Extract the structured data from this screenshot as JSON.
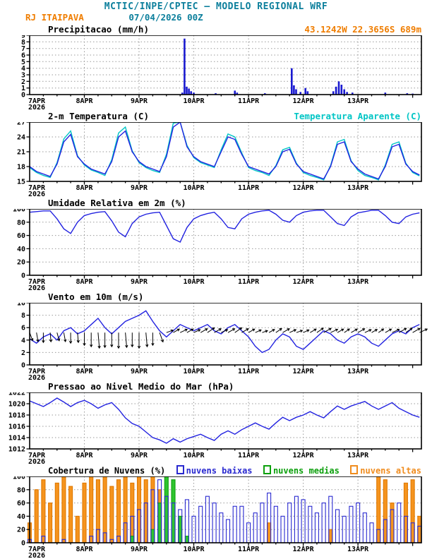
{
  "header": {
    "line1": "MCTIC/INPE/CPTEC — MODELO REGIONAL WRF",
    "station": "RJ ITAIPAVA",
    "run": "07/04/2026 00Z",
    "coords": "43.1242W 22.3656S 689m"
  },
  "colors": {
    "header_teal": "#0c7f9c",
    "orange": "#ef7d00",
    "line_blue": "#2222e0",
    "cyan": "#00c5c5",
    "precip_blue": "#1a1ad0",
    "cloud_low_blue": "#2a2ad0",
    "cloud_mid_green": "#0da00d",
    "cloud_high_orange": "#f08c1e"
  },
  "x_axis": {
    "tmax": 7.16,
    "ticks": [
      {
        "t": 0,
        "label": "7APR",
        "sub": "2026"
      },
      {
        "t": 1,
        "label": "8APR"
      },
      {
        "t": 2,
        "label": "9APR"
      },
      {
        "t": 3,
        "label": "10APR"
      },
      {
        "t": 4,
        "label": "11APR"
      },
      {
        "t": 5,
        "label": "12APR"
      },
      {
        "t": 6,
        "label": "13APR"
      }
    ]
  },
  "time_days": [
    0,
    0.125,
    0.25,
    0.375,
    0.5,
    0.625,
    0.75,
    0.875,
    1,
    1.125,
    1.25,
    1.375,
    1.5,
    1.625,
    1.75,
    1.875,
    2,
    2.125,
    2.25,
    2.375,
    2.5,
    2.625,
    2.75,
    2.875,
    3,
    3.125,
    3.25,
    3.375,
    3.5,
    3.625,
    3.75,
    3.875,
    4,
    4.125,
    4.25,
    4.375,
    4.5,
    4.625,
    4.75,
    4.875,
    5,
    5.125,
    5.25,
    5.375,
    5.5,
    5.625,
    5.75,
    5.875,
    6,
    6.125,
    6.25,
    6.375,
    6.5,
    6.625,
    6.75,
    6.875,
    7,
    7.125
  ],
  "chart_data": [
    {
      "type": "bar",
      "title": "Precipitacao (mm/h)",
      "ylim": [
        0,
        9
      ],
      "ystep": 1,
      "color": "#1a1ad0",
      "bars": {
        "t": [
          2.79,
          2.83,
          2.87,
          2.91,
          2.95,
          3.0,
          3.4,
          3.75,
          3.79,
          4.3,
          4.79,
          4.83,
          4.87,
          4.95,
          5.04,
          5.08,
          5.55,
          5.6,
          5.65,
          5.7,
          5.75,
          5.8,
          5.9,
          6.5,
          6.9,
          7.0
        ],
        "v": [
          0.3,
          8.5,
          1.2,
          0.9,
          0.5,
          0.3,
          0.2,
          0.6,
          0.3,
          0.2,
          4.0,
          1.4,
          0.8,
          0.4,
          1.0,
          0.5,
          0.5,
          1.2,
          2.0,
          1.5,
          0.8,
          0.4,
          0.3,
          0.3,
          0.2,
          0.15
        ]
      }
    },
    {
      "type": "line",
      "title": "2-m Temperatura (C)",
      "right_label": "Temperatura Aparente (C)",
      "ylim": [
        15,
        27
      ],
      "ystep": 3,
      "series": [
        {
          "name": "Temperatura Aparente (C)",
          "color": "#00c5c5",
          "v": [
            17.8,
            16.8,
            16.2,
            15.8,
            18.8,
            23.6,
            25.2,
            20.2,
            18.3,
            17.3,
            16.8,
            16.2,
            19.4,
            24.8,
            26,
            21.2,
            18.8,
            17.8,
            17.2,
            16.8,
            20.5,
            26.8,
            27,
            22.3,
            19.8,
            18.8,
            18.3,
            17.8,
            21.4,
            24.6,
            24,
            20.8,
            17.8,
            17.2,
            16.8,
            16.2,
            18.2,
            21.4,
            21.9,
            18.7,
            16.8,
            16.2,
            15.8,
            15.3,
            18.2,
            23,
            23.5,
            19.2,
            17.2,
            16.2,
            15.8,
            15.3,
            18.3,
            22.5,
            23,
            18.7,
            16.8,
            16.1
          ]
        },
        {
          "name": "2-m Temperatura (C)",
          "color": "#2222e0",
          "v": [
            18,
            17,
            16.5,
            16,
            18.5,
            23,
            24.5,
            20,
            18.5,
            17.5,
            17,
            16.5,
            19,
            24,
            25.2,
            21,
            19,
            18,
            17.5,
            17,
            20,
            26,
            27,
            22,
            20,
            19,
            18.5,
            18,
            21,
            24,
            23.5,
            20.5,
            18,
            17.5,
            17,
            16.5,
            18,
            21,
            21.5,
            18.5,
            17,
            16.5,
            16,
            15.5,
            18,
            22.5,
            23,
            19,
            17.5,
            16.5,
            16,
            15.5,
            18,
            22,
            22.5,
            18.5,
            17,
            16.3
          ]
        }
      ]
    },
    {
      "type": "line",
      "title": "Umidade Relativa em 2m (%)",
      "ylim": [
        0,
        100
      ],
      "ystep": 20,
      "series": [
        {
          "name": "Umidade Relativa",
          "color": "#2222e0",
          "v": [
            95,
            96,
            97,
            97,
            85,
            70,
            63,
            80,
            90,
            93,
            95,
            96,
            82,
            65,
            58,
            78,
            88,
            92,
            94,
            95,
            75,
            55,
            50,
            72,
            85,
            90,
            93,
            95,
            85,
            72,
            70,
            85,
            92,
            95,
            97,
            98,
            92,
            83,
            80,
            90,
            95,
            97,
            98,
            98,
            88,
            78,
            75,
            88,
            94,
            96,
            98,
            98,
            90,
            80,
            78,
            88,
            92,
            94
          ]
        }
      ]
    },
    {
      "type": "line",
      "title": "Vento em 10m (m/s)",
      "ylim": [
        0,
        10
      ],
      "ystep": 2,
      "series": [
        {
          "name": "Vento em 10m",
          "color": "#2222e0",
          "v": [
            4.2,
            3.5,
            4.5,
            5,
            4,
            5.5,
            6,
            5,
            5.5,
            6.5,
            7.5,
            6,
            5,
            6,
            7,
            7.5,
            8,
            8.7,
            7,
            5.5,
            4.5,
            5.5,
            6.5,
            6,
            5.5,
            6,
            6.5,
            5.5,
            5,
            6,
            6.5,
            5.5,
            4.5,
            3,
            2,
            2.5,
            4,
            5,
            4.5,
            3,
            2.5,
            3.5,
            4.5,
            5.5,
            5,
            4,
            3.5,
            4.5,
            5,
            4.5,
            3.5,
            3,
            4,
            5,
            5.5,
            5,
            6,
            6.5
          ]
        }
      ],
      "barbs": {
        "anchor": 5.2,
        "ang": [
          -70,
          -80,
          -90,
          -85,
          -75,
          -80,
          -90,
          -85,
          -90,
          -90,
          -85,
          -90,
          -90,
          -90,
          -85,
          -90,
          -90,
          -85,
          -90,
          -70,
          20,
          30,
          25,
          30,
          25,
          30,
          35,
          30,
          25,
          30,
          35,
          30,
          30,
          25,
          20,
          30,
          35,
          30,
          25,
          20,
          25,
          30,
          35,
          30,
          25,
          30,
          35,
          30,
          30,
          25,
          30,
          35,
          30,
          25,
          30,
          35,
          30,
          25
        ],
        "len": [
          12,
          13,
          14,
          13,
          12,
          13,
          15,
          14,
          18,
          20,
          22,
          21,
          20,
          22,
          21,
          20,
          22,
          20,
          18,
          14,
          10,
          10,
          11,
          10,
          10,
          11,
          12,
          11,
          10,
          11,
          12,
          11,
          10,
          9,
          8,
          9,
          10,
          11,
          10,
          9,
          9,
          10,
          11,
          12,
          11,
          10,
          9,
          10,
          11,
          10,
          9,
          9,
          10,
          11,
          12,
          11,
          12,
          12
        ]
      }
    },
    {
      "type": "line",
      "title": "Pressao ao Nivel Medio do Mar (hPa)",
      "ylim": [
        1012,
        1022
      ],
      "ystep": 2,
      "series": [
        {
          "name": "Pressao ao Nivel Medio do Mar",
          "color": "#2222e0",
          "v": [
            1020.5,
            1020,
            1019.5,
            1020.2,
            1021,
            1020.3,
            1019.5,
            1020.2,
            1020.6,
            1020,
            1019.2,
            1019.8,
            1020.2,
            1019,
            1017.5,
            1016.5,
            1016,
            1015,
            1014,
            1013.6,
            1013,
            1013.8,
            1013.2,
            1013.8,
            1014.2,
            1014.6,
            1014,
            1013.5,
            1014.6,
            1015.2,
            1014.6,
            1015.4,
            1016,
            1016.6,
            1016,
            1015.5,
            1016.6,
            1017.6,
            1017,
            1017.6,
            1018,
            1018.6,
            1018,
            1017.5,
            1018.6,
            1019.6,
            1019,
            1019.6,
            1020,
            1020.4,
            1019.6,
            1019,
            1019.6,
            1020.2,
            1019.2,
            1018.6,
            1018,
            1017.6
          ]
        }
      ]
    },
    {
      "type": "bar",
      "title": "Cobertura de Nuvens (%)",
      "ylim": [
        0,
        100
      ],
      "ystep": 20,
      "legend": [
        {
          "label": "nuvens baixas",
          "color": "#2a2ad0"
        },
        {
          "label": "nuvens medias",
          "color": "#0da00d"
        },
        {
          "label": "nuvens altas",
          "color": "#f08c1e"
        }
      ],
      "cloud_series": [
        {
          "name": "nuvens altas",
          "color": "#e07800",
          "fill": "#f5941e",
          "v": [
            30,
            80,
            95,
            60,
            90,
            100,
            85,
            40,
            90,
            100,
            95,
            100,
            85,
            95,
            100,
            90,
            100,
            95,
            100,
            80,
            30,
            0,
            0,
            0,
            0,
            0,
            0,
            0,
            0,
            0,
            0,
            0,
            0,
            0,
            0,
            30,
            0,
            0,
            0,
            0,
            0,
            0,
            0,
            0,
            20,
            0,
            0,
            0,
            0,
            0,
            0,
            100,
            95,
            60,
            0,
            90,
            95,
            40
          ]
        },
        {
          "name": "nuvens medias",
          "color": "#0da00d",
          "fill": "#2fc42f",
          "v": [
            0,
            0,
            0,
            0,
            0,
            0,
            0,
            0,
            0,
            0,
            0,
            0,
            0,
            0,
            0,
            10,
            0,
            0,
            20,
            60,
            100,
            95,
            40,
            10,
            0,
            0,
            0,
            0,
            0,
            0,
            0,
            0,
            0,
            0,
            0,
            0,
            0,
            0,
            0,
            0,
            0,
            0,
            0,
            0,
            0,
            0,
            0,
            0,
            0,
            0,
            0,
            0,
            0,
            0,
            0,
            0,
            0,
            0
          ]
        },
        {
          "name": "nuvens baixas",
          "color": "#2a2ad0",
          "fill": "none",
          "v": [
            5,
            0,
            10,
            0,
            0,
            5,
            0,
            0,
            0,
            10,
            20,
            15,
            5,
            10,
            30,
            40,
            50,
            60,
            80,
            95,
            70,
            60,
            50,
            65,
            40,
            55,
            70,
            60,
            45,
            35,
            55,
            55,
            30,
            45,
            60,
            75,
            55,
            40,
            60,
            70,
            65,
            55,
            45,
            60,
            70,
            50,
            40,
            55,
            60,
            45,
            30,
            20,
            35,
            50,
            60,
            40,
            30,
            25
          ]
        }
      ]
    }
  ]
}
